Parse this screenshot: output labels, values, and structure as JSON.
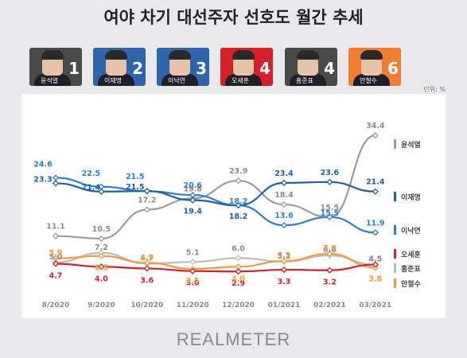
{
  "header": {
    "title": "여야 차기 대선주자 선호도 월간 추세",
    "unit": "단위: %",
    "brand": "REALMETER"
  },
  "candidates": [
    {
      "name": "윤석열",
      "rank": "1",
      "bg": "#4a4a4a"
    },
    {
      "name": "이재명",
      "rank": "2",
      "bg": "#2f64ad"
    },
    {
      "name": "이낙연",
      "rank": "3",
      "bg": "#2f64ad"
    },
    {
      "name": "오세훈",
      "rank": "4",
      "bg": "#d6202a"
    },
    {
      "name": "홍준표",
      "rank": "4",
      "bg": "#4a4a4a"
    },
    {
      "name": "안철수",
      "rank": "6",
      "bg": "#ef7d32"
    }
  ],
  "chart_data": {
    "type": "line",
    "categories": [
      "8/2020",
      "9/2020",
      "10/2020",
      "11/2020",
      "12/2020",
      "01/2021",
      "02/2021",
      "03/2021"
    ],
    "series": [
      {
        "name": "윤석열",
        "color": "#9b9b9b",
        "values": [
          11.1,
          10.5,
          17.2,
          19.8,
          23.9,
          18.4,
          15.5,
          34.4
        ]
      },
      {
        "name": "이재명",
        "color": "#1f5fa8",
        "values": [
          23.3,
          21.4,
          21.5,
          19.4,
          18.2,
          23.4,
          23.6,
          21.4
        ]
      },
      {
        "name": "이낙연",
        "color": "#2f7fd0",
        "values": [
          24.6,
          22.5,
          21.5,
          20.6,
          18.2,
          13.6,
          15.5,
          11.9
        ]
      },
      {
        "name": "오세훈",
        "color": "#d6202a",
        "values": [
          4.7,
          4.0,
          3.6,
          3.0,
          2.9,
          3.3,
          3.2,
          4.5
        ]
      },
      {
        "name": "홍준표",
        "color": "#bcbcbc",
        "values": [
          5.0,
          7.2,
          4.7,
          5.1,
          6.0,
          5.2,
          6.6,
          4.5
        ]
      },
      {
        "name": "안철수",
        "color": "#f39a3b",
        "values": [
          5.9,
          6.5,
          4.9,
          3.5,
          4.0,
          5.3,
          7.0,
          3.8
        ]
      }
    ],
    "labels": {
      "윤석열": [
        "11.1",
        "10.5",
        "17.2",
        "19.8",
        "23.9",
        "18.4",
        "15.5",
        "34.4"
      ],
      "이재명": [
        "23.3",
        "21.4",
        "21.5",
        "19.4",
        "18.2",
        "23.4",
        "23.6",
        "21.4"
      ],
      "이낙연": [
        "24.6",
        "22.5",
        "21.5",
        "20.6",
        "18.2",
        "13.6",
        "15.5",
        "11.9"
      ],
      "오세훈": [
        "4.7",
        "4.0",
        "3.6",
        "3.0",
        "2.9",
        "3.3",
        "3.2",
        "4.5"
      ],
      "홍준표": [
        "5.0",
        "7.2",
        "4.7",
        "5.1",
        "6.0",
        "5.2",
        "6.6",
        "4.5"
      ],
      "안철수": [
        "5.9",
        "6.5",
        "4.9",
        "3.5",
        "4.0",
        "5.3",
        "7.0",
        "3.8"
      ]
    },
    "ylim": [
      0,
      37
    ],
    "grid": false,
    "legend": "right"
  }
}
